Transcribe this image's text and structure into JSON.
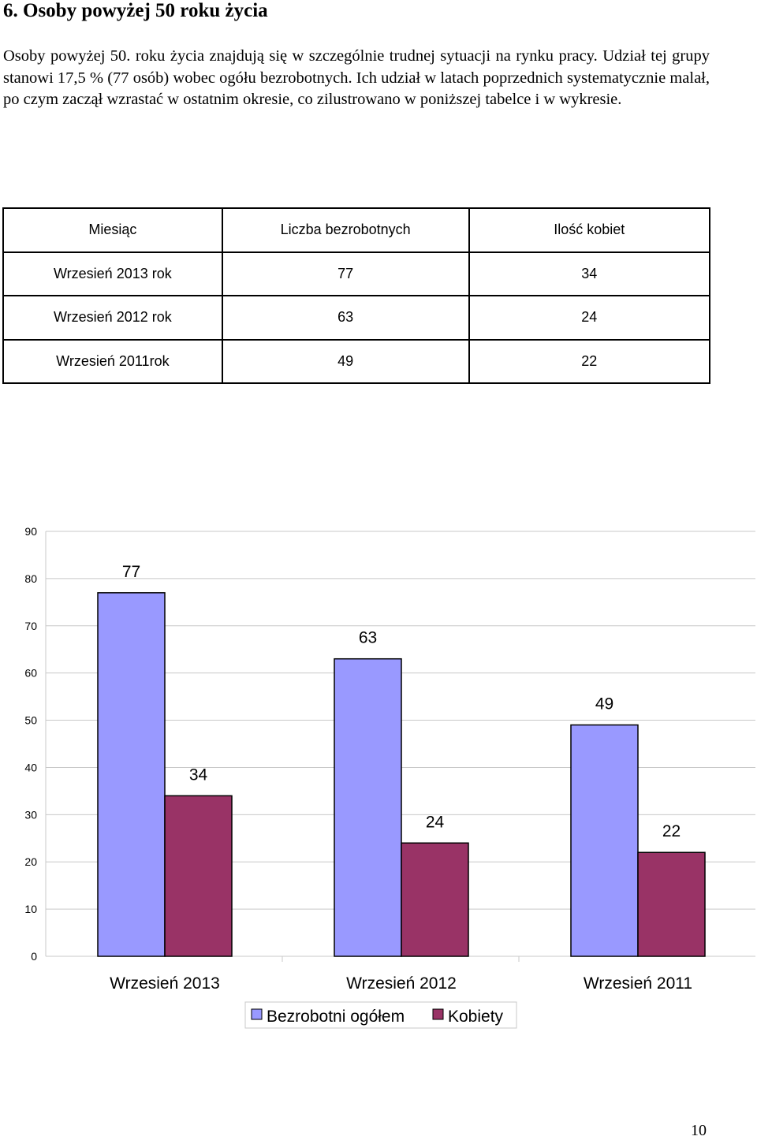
{
  "heading": "6. Osoby powyżej 50 roku życia",
  "paragraph": "Osoby powyżej 50. roku życia znajdują się w szczególnie trudnej sytuacji na rynku pracy. Udział tej grupy stanowi 17,5 % (77 osób) wobec ogółu bezrobotnych. Ich udział w latach poprzednich systematycznie malał, po czym zaczął wzrastać w ostatnim okresie, co zilustrowano w poniższej tabelce i w wykresie.",
  "table": {
    "headers": [
      "Miesiąc",
      "Liczba bezrobotnych",
      "Ilość kobiet"
    ],
    "rows": [
      [
        "Wrzesień  2013 rok",
        "77",
        "34"
      ],
      [
        "Wrzesień  2012 rok",
        "63",
        "24"
      ],
      [
        "Wrzesień  2011rok",
        "49",
        "22"
      ]
    ]
  },
  "chart_data": {
    "type": "bar",
    "categories": [
      "Wrzesień 2013",
      "Wrzesień 2012",
      "Wrzesień 2011"
    ],
    "series": [
      {
        "name": "Bezrobotni ogółem",
        "values": [
          77,
          63,
          49
        ],
        "color": "#9999ff"
      },
      {
        "name": "Kobiety",
        "values": [
          34,
          24,
          22
        ],
        "color": "#993366"
      }
    ],
    "yticks": [
      0,
      10,
      20,
      30,
      40,
      50,
      60,
      70,
      80,
      90
    ],
    "ylim": [
      0,
      90
    ],
    "grid": true,
    "legend": "bottom"
  },
  "page_number": "10"
}
